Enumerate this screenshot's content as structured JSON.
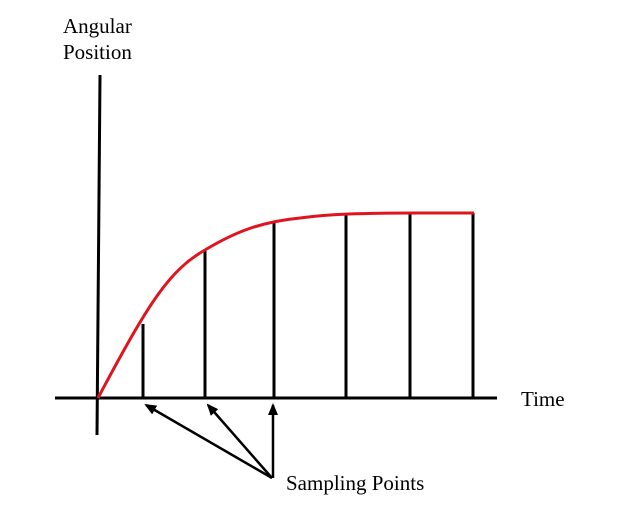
{
  "labels": {
    "y_axis_line1": "Angular",
    "y_axis_line2": "Position",
    "x_axis": "Time",
    "annotation": "Sampling Points"
  },
  "colors": {
    "curve": "#e0141e",
    "ink": "#000000",
    "background": "#ffffff"
  }
}
